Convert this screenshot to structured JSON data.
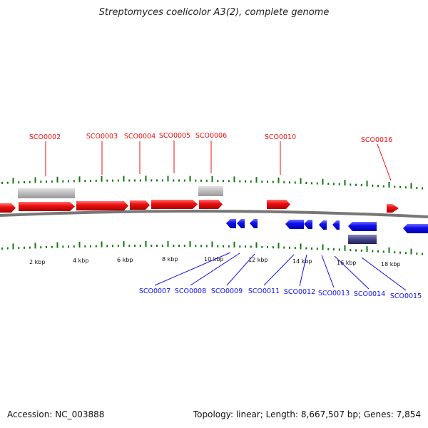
{
  "title": "Streptomyces coelicolor A3(2), complete genome",
  "footer": {
    "accession": "Accession: NC_003888",
    "summary": "Topology: linear; Length: 8,667,507 bp; Genes: 7,854"
  },
  "colors": {
    "forward": "#ee1111",
    "reverse": "#1111ee",
    "other_feature": "#bbbbbb",
    "reverse_other": "#444488",
    "ticks": "#117711",
    "backbone": "#777777"
  },
  "scale": {
    "tick_labels": [
      "2 kbp",
      "4 kbp",
      "6 kbp",
      "8 kbp",
      "10 kbp",
      "12 kbp",
      "14 kbp",
      "16 kbp",
      "18 kbp"
    ]
  },
  "forward_labels": [
    "SCO0002",
    "SCO0003",
    "SCO0004",
    "SCO0005",
    "SCO0006",
    "SCO0010",
    "SCO0016"
  ],
  "reverse_labels": [
    "SCO0007",
    "SCO0008",
    "SCO0009",
    "SCO0011",
    "SCO0012",
    "SCO0013",
    "SCO0014",
    "SCO0015"
  ]
}
